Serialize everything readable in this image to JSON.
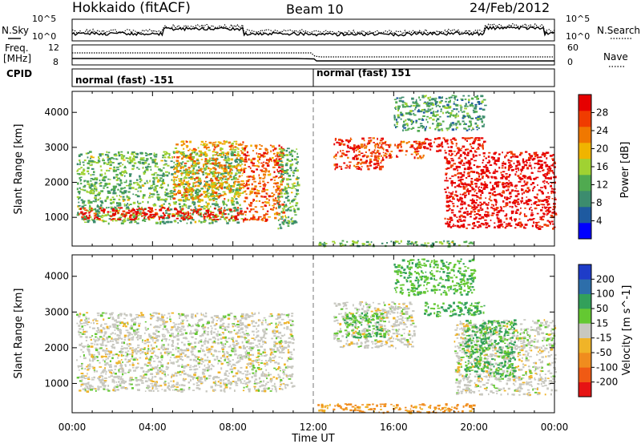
{
  "header": {
    "title": "Hokkaido (fitACF)",
    "beam": "Beam 10",
    "date": "24/Feb/2012"
  },
  "noise_panel": {
    "left_label": "N.Sky",
    "right_label": "N.Search",
    "left_ticks": [
      "10^5",
      "10^0"
    ],
    "right_ticks": [
      "10^5",
      "10^0"
    ]
  },
  "freq_panel": {
    "left_label_line1": "Freq.",
    "left_label_line2": "[MHz]",
    "right_label": "Nave",
    "left_ticks": [
      "12",
      "8"
    ],
    "right_ticks": [
      "60",
      "0"
    ]
  },
  "cpid_panel": {
    "label": "CPID",
    "segments": [
      {
        "start_hour": 0,
        "end_hour": 12,
        "text": "normal (fast) -151"
      },
      {
        "start_hour": 12,
        "end_hour": 24,
        "text": "normal (fast) 151"
      }
    ]
  },
  "axes": {
    "ylabel": "Slant Range [km]",
    "xlabel": "Time UT",
    "x_ticks": [
      "00:00",
      "04:00",
      "08:00",
      "12:00",
      "16:00",
      "20:00",
      "00:00"
    ],
    "y_ticks": [
      "1000",
      "2000",
      "3000",
      "4000"
    ]
  },
  "power_colorbar": {
    "label": "Power [dB]",
    "ticks": [
      "28",
      "24",
      "20",
      "16",
      "12",
      "8",
      "4"
    ]
  },
  "velocity_colorbar": {
    "label": "Velocity [m s^-1]",
    "ticks": [
      "200",
      "100",
      "50",
      "15",
      "-15",
      "-50",
      "-100",
      "-200"
    ]
  },
  "colors": {
    "power_scale": [
      "#0000ff",
      "#1e5aa0",
      "#3c8c6e",
      "#50aa50",
      "#a0d232",
      "#f0b400",
      "#f07800",
      "#f03c00",
      "#e60000"
    ],
    "velocity_scale": [
      "#1e3cc8",
      "#2d6eaa",
      "#32a05a",
      "#64c832",
      "#c8c8c0",
      "#f0b428",
      "#f08c1e",
      "#f05a14",
      "#e61414"
    ]
  },
  "chart_data": [
    {
      "type": "heatmap",
      "title": "Power",
      "x_axis": {
        "label": "Time UT",
        "range_hours": [
          0,
          24
        ]
      },
      "y_axis": {
        "label": "Slant Range [km]",
        "range_km": [
          180,
          4600
        ]
      },
      "value_range_db": [
        0,
        30
      ],
      "echo_regions": [
        {
          "t": [
            0.2,
            8.4
          ],
          "r": [
            850,
            2900
          ],
          "value_db": 12
        },
        {
          "t": [
            0.3,
            8.5
          ],
          "r": [
            950,
            1300
          ],
          "value_db": 28
        },
        {
          "t": [
            5.0,
            8.5
          ],
          "r": [
            1500,
            3200
          ],
          "value_db": 20
        },
        {
          "t": [
            8.5,
            10.5
          ],
          "r": [
            900,
            3100
          ],
          "value_db": 24
        },
        {
          "t": [
            10.2,
            11.2
          ],
          "r": [
            700,
            3000
          ],
          "value_db": 12
        },
        {
          "t": [
            13.0,
            15.5
          ],
          "r": [
            2400,
            3300
          ],
          "value_db": 26
        },
        {
          "t": [
            15.0,
            17.5
          ],
          "r": [
            2700,
            3200
          ],
          "value_db": 24
        },
        {
          "t": [
            17.5,
            20.5
          ],
          "r": [
            2900,
            3300
          ],
          "value_db": 28
        },
        {
          "t": [
            18.5,
            24.0
          ],
          "r": [
            700,
            2900
          ],
          "value_db": 30
        },
        {
          "t": [
            16.0,
            20.5
          ],
          "r": [
            3500,
            4500
          ],
          "value_db": 10
        },
        {
          "t": [
            12.2,
            20.0
          ],
          "r": [
            200,
            350
          ],
          "value_db": 12
        }
      ]
    },
    {
      "type": "heatmap",
      "title": "Velocity",
      "x_axis": {
        "label": "Time UT",
        "range_hours": [
          0,
          24
        ]
      },
      "y_axis": {
        "label": "Slant Range [km]",
        "range_km": [
          180,
          4600
        ]
      },
      "value_range_ms": [
        -200,
        200
      ],
      "echo_regions": [
        {
          "t": [
            0.2,
            11.0
          ],
          "r": [
            800,
            3000
          ],
          "value_ms": 0
        },
        {
          "t": [
            13.0,
            17.0
          ],
          "r": [
            2000,
            3300
          ],
          "value_ms": 0
        },
        {
          "t": [
            13.5,
            15.5
          ],
          "r": [
            2300,
            3000
          ],
          "value_ms": 60
        },
        {
          "t": [
            17.5,
            20.5
          ],
          "r": [
            2900,
            3300
          ],
          "value_ms": 70
        },
        {
          "t": [
            19.0,
            24.0
          ],
          "r": [
            700,
            2800
          ],
          "value_ms": 0
        },
        {
          "t": [
            19.5,
            22.0
          ],
          "r": [
            1200,
            2800
          ],
          "value_ms": 70
        },
        {
          "t": [
            12.2,
            20.0
          ],
          "r": [
            200,
            450
          ],
          "value_ms": -80
        },
        {
          "t": [
            16.0,
            20.0
          ],
          "r": [
            3500,
            4500
          ],
          "value_ms": 60
        }
      ]
    }
  ]
}
